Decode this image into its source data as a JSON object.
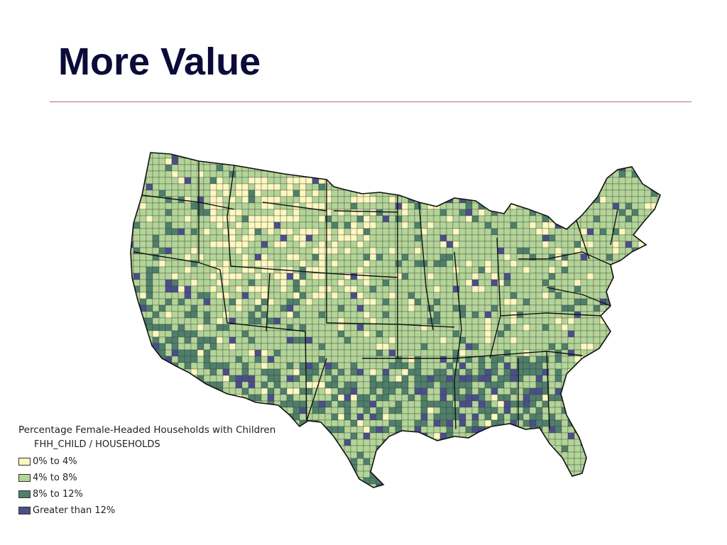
{
  "slide": {
    "title": "More Value"
  },
  "map": {
    "region": "United States counties",
    "colors": {
      "background": "#ffffff",
      "border": "#1a1a1a",
      "class_1": "#fdf8c0",
      "class_2": "#b3d598",
      "class_3": "#4f7f6a",
      "class_4": "#4a4f8a"
    }
  },
  "legend": {
    "title": "Percentage Female-Headed Households with Children",
    "field": "FHH_CHILD / HOUSEHOLDS",
    "items": [
      {
        "label": "0% to 4%",
        "color": "#fdf8c0"
      },
      {
        "label": "4% to 8%",
        "color": "#b3d598"
      },
      {
        "label": "8% to 12%",
        "color": "#4f7f6a"
      },
      {
        "label": "Greater than 12%",
        "color": "#4a4f8a"
      }
    ]
  }
}
